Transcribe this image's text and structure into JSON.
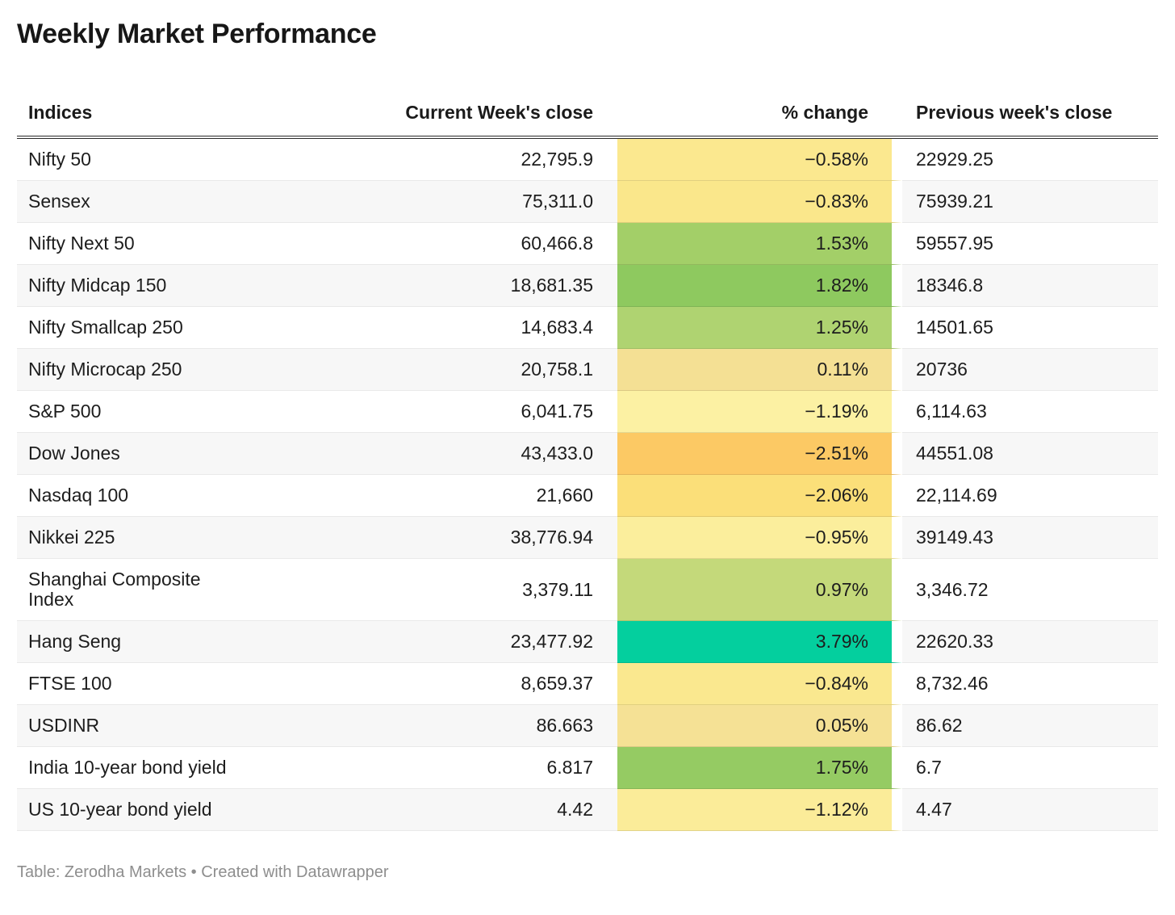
{
  "title": "Weekly Market Performance",
  "footer_attribution": "Table: Zerodha Markets • Created with Datawrapper",
  "chart_data": {
    "type": "table",
    "title": "Weekly Market Performance",
    "columns": [
      "Indices",
      "Current Week's close",
      "% change",
      "Previous week's close"
    ],
    "heatmap_column": "% change",
    "legend_position": "none",
    "rows": [
      {
        "index": "Nifty 50",
        "current_close": "22,795.9",
        "pct_change": -0.58,
        "pct_change_label": "−0.58%",
        "previous_close": "22929.25",
        "cell_color": "#fbe88f"
      },
      {
        "index": "Sensex",
        "current_close": "75,311.0",
        "pct_change": -0.83,
        "pct_change_label": "−0.83%",
        "previous_close": "75939.21",
        "cell_color": "#fae78b"
      },
      {
        "index": "Nifty Next 50",
        "current_close": "60,466.8",
        "pct_change": 1.53,
        "pct_change_label": "1.53%",
        "previous_close": "59557.95",
        "cell_color": "#a3cf68"
      },
      {
        "index": "Nifty Midcap 150",
        "current_close": "18,681.35",
        "pct_change": 1.82,
        "pct_change_label": "1.82%",
        "previous_close": "18346.8",
        "cell_color": "#8ec95f"
      },
      {
        "index": "Nifty Smallcap 250",
        "current_close": "14,683.4",
        "pct_change": 1.25,
        "pct_change_label": "1.25%",
        "previous_close": "14501.65",
        "cell_color": "#afd371"
      },
      {
        "index": "Nifty Microcap 250",
        "current_close": "20,758.1",
        "pct_change": 0.11,
        "pct_change_label": "0.11%",
        "previous_close": "20736",
        "cell_color": "#f4e094"
      },
      {
        "index": "S&P 500",
        "current_close": "6,041.75",
        "pct_change": -1.19,
        "pct_change_label": "−1.19%",
        "previous_close": "6,114.63",
        "cell_color": "#fcf1a3"
      },
      {
        "index": "Dow Jones",
        "current_close": "43,433.0",
        "pct_change": -2.51,
        "pct_change_label": "−2.51%",
        "previous_close": "44551.08",
        "cell_color": "#fcc964"
      },
      {
        "index": "Nasdaq 100",
        "current_close": "21,660",
        "pct_change": -2.06,
        "pct_change_label": "−2.06%",
        "previous_close": "22,114.69",
        "cell_color": "#fbdf79"
      },
      {
        "index": "Nikkei 225",
        "current_close": "38,776.94",
        "pct_change": -0.95,
        "pct_change_label": "−0.95%",
        "previous_close": "39149.43",
        "cell_color": "#fbee9c"
      },
      {
        "index": "Shanghai Composite Index",
        "current_close": "3,379.11",
        "pct_change": 0.97,
        "pct_change_label": "0.97%",
        "previous_close": "3,346.72",
        "cell_color": "#c4d97a"
      },
      {
        "index": "Hang Seng",
        "current_close": "23,477.92",
        "pct_change": 3.79,
        "pct_change_label": "3.79%",
        "previous_close": "22620.33",
        "cell_color": "#04cf9e"
      },
      {
        "index": "FTSE 100",
        "current_close": "8,659.37",
        "pct_change": -0.84,
        "pct_change_label": "−0.84%",
        "previous_close": "8,732.46",
        "cell_color": "#fae88f"
      },
      {
        "index": "USDINR",
        "current_close": "86.663",
        "pct_change": 0.05,
        "pct_change_label": "0.05%",
        "previous_close": "86.62",
        "cell_color": "#f5e195"
      },
      {
        "index": "India 10-year bond yield",
        "current_close": "6.817",
        "pct_change": 1.75,
        "pct_change_label": "1.75%",
        "previous_close": "6.7",
        "cell_color": "#95cb63"
      },
      {
        "index": "US 10-year bond yield",
        "current_close": "4.42",
        "pct_change": -1.12,
        "pct_change_label": "−1.12%",
        "previous_close": "4.47",
        "cell_color": "#fbec99"
      }
    ]
  },
  "style_colors": {
    "stripe_row": "#f7f7f7",
    "row_border": "#e9e9e9",
    "header_border": "#2b2b2b",
    "footer_text": "#8e8e8e"
  }
}
